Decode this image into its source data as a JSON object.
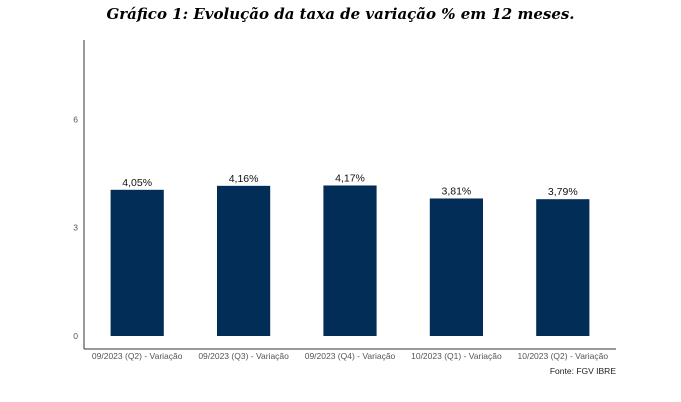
{
  "chart_data": {
    "type": "bar",
    "title": "Gráfico 1: Evolução da taxa de variação % em 12 meses.",
    "categories": [
      "09/2023 (Q2) - Variação",
      "09/2023 (Q3) - Variação",
      "09/2023 (Q4) - Variação",
      "10/2023 (Q1) - Variação",
      "10/2023 (Q2) - Variação"
    ],
    "values": [
      4.05,
      4.16,
      4.17,
      3.81,
      3.79
    ],
    "data_labels": [
      "4,05%",
      "4,16%",
      "4,17%",
      "3,81%",
      "3,79%"
    ],
    "ylim": [
      0,
      8.2
    ],
    "yticks": [
      0,
      3,
      6
    ],
    "ytick_labels": [
      "0",
      "3",
      "6"
    ],
    "grid": false,
    "bar_color": "#022d57",
    "source": "Fonte: FGV IBRE"
  }
}
